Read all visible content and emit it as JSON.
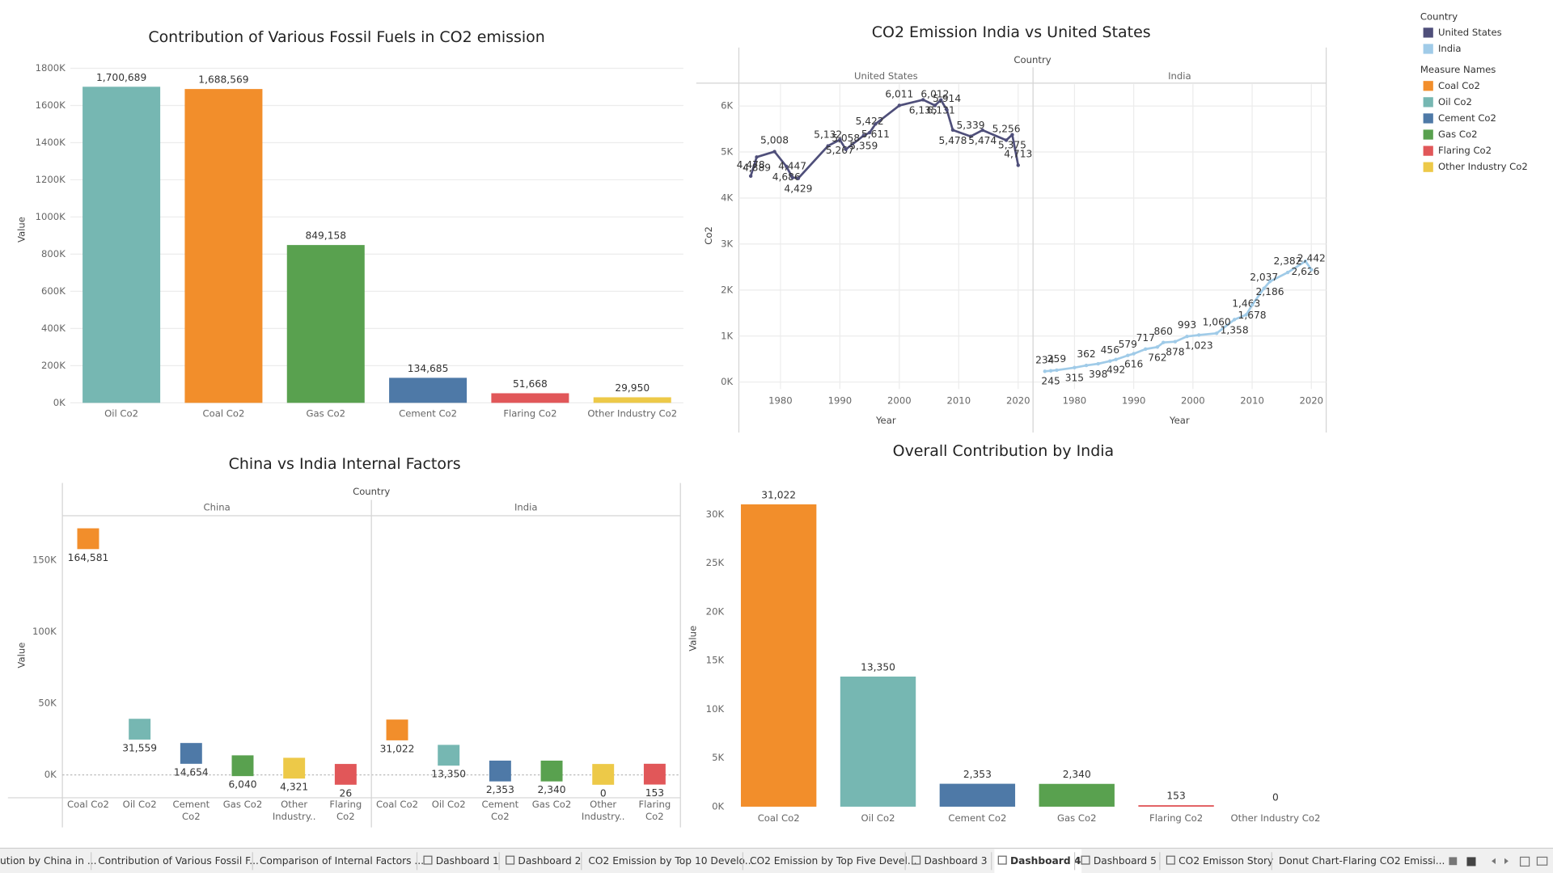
{
  "chart_data": [
    {
      "type": "bar",
      "title": "Contribution of Various Fossil Fuels in CO2 emission",
      "y_label": "Value",
      "categories": [
        "Oil Co2",
        "Coal Co2",
        "Gas Co2",
        "Cement Co2",
        "Flaring Co2",
        "Other Industry Co2"
      ],
      "values": [
        1700689,
        1688569,
        849158,
        134685,
        51668,
        29950
      ],
      "value_labels": [
        "1,700,689",
        "1,688,569",
        "849,158",
        "134,685",
        "51,668",
        "29,950"
      ],
      "colors": [
        "#76b7b2",
        "#f28e2b",
        "#59a14f",
        "#4e79a7",
        "#e15759",
        "#edc948"
      ],
      "ylim": [
        0,
        1800000
      ],
      "yticks": [
        {
          "value": 0,
          "label": "0K"
        },
        {
          "value": 200000,
          "label": "200K"
        },
        {
          "value": 400000,
          "label": "400K"
        },
        {
          "value": 600000,
          "label": "600K"
        },
        {
          "value": 800000,
          "label": "800K"
        },
        {
          "value": 1000000,
          "label": "1000K"
        },
        {
          "value": 1200000,
          "label": "1200K"
        },
        {
          "value": 1400000,
          "label": "1400K"
        },
        {
          "value": 1600000,
          "label": "1600K"
        },
        {
          "value": 1800000,
          "label": "1800K"
        }
      ],
      "grid": true
    },
    {
      "type": "line",
      "title": "CO2 Emission India vs United States",
      "header": "Country",
      "x_label": "Year",
      "y_label": "Co2",
      "series": [
        {
          "name": "United States",
          "color": "#4f4f7a",
          "x": [
            1975,
            1976,
            1979,
            1981,
            1982,
            1983,
            1988,
            1990,
            1991,
            1994,
            1995,
            1996,
            2000,
            2004,
            2006,
            2007,
            2008,
            2009,
            2012,
            2014,
            2018,
            2019,
            2020
          ],
          "values": [
            4478,
            4889,
            5008,
            4686,
            4447,
            4429,
            5132,
            5267,
            5058,
            5359,
            5422,
            5611,
            6011,
            6135,
            6012,
            6131,
            5914,
            5478,
            5339,
            5474,
            5256,
            5375,
            4713
          ],
          "value_labels": [
            "4,478",
            "4,889",
            "5,008",
            "4,686",
            "4,447",
            "4,429",
            "5,132",
            "5,267",
            "5,058",
            "5,359",
            "5,422",
            "5,611",
            "6,011",
            "6,135",
            "6,012",
            "6,131",
            "5,914",
            "5,478",
            "5,339",
            "5,474",
            "5,256",
            "5,375",
            "4,713"
          ]
        },
        {
          "name": "India",
          "color": "#a0cbe8",
          "x": [
            1975,
            1976,
            1977,
            1980,
            1982,
            1984,
            1986,
            1987,
            1989,
            1990,
            1992,
            1994,
            1995,
            1997,
            1999,
            2001,
            2004,
            2007,
            2009,
            2010,
            2012,
            2013,
            2016,
            2019,
            2020
          ],
          "values": [
            234,
            245,
            259,
            315,
            362,
            398,
            456,
            492,
            579,
            616,
            717,
            762,
            860,
            878,
            993,
            1023,
            1060,
            1358,
            1463,
            1678,
            2037,
            2186,
            2382,
            2626,
            2442
          ],
          "value_labels": [
            "234",
            "245",
            "259",
            "315",
            "362",
            "398",
            "456",
            "492",
            "579",
            "616",
            "717",
            "762",
            "860",
            "878",
            "993",
            "1,023",
            "1,060",
            "1,358",
            "1,463",
            "1,678",
            "2,037",
            "2,186",
            "2,382",
            "2,626",
            "2,442"
          ]
        }
      ],
      "xlim": [
        1973,
        2022.5
      ],
      "xticks": [
        1980,
        1990,
        2000,
        2010,
        2020
      ],
      "ylim": [
        -150,
        6475
      ],
      "yticks": [
        {
          "value": 0,
          "label": "0K"
        },
        {
          "value": 1000,
          "label": "1K"
        },
        {
          "value": 2000,
          "label": "2K"
        },
        {
          "value": 3000,
          "label": "3K"
        },
        {
          "value": 4000,
          "label": "4K"
        },
        {
          "value": 5000,
          "label": "5K"
        },
        {
          "value": 6000,
          "label": "6K"
        }
      ],
      "grid": true
    },
    {
      "type": "gantt",
      "title": "China vs India Internal Factors",
      "header": "Country",
      "y_label": "Value",
      "categories": [
        "Coal Co2",
        "Oil Co2",
        "Cement Co2",
        "Gas Co2",
        "Other Industry..",
        "Flaring Co2"
      ],
      "colors": [
        "#f28e2b",
        "#76b7b2",
        "#4e79a7",
        "#59a14f",
        "#edc948",
        "#e15759"
      ],
      "series": [
        {
          "name": "China",
          "values": [
            164581,
            31559,
            14654,
            6040,
            4321,
            26
          ],
          "value_labels": [
            "164,581",
            "31,559",
            "14,654",
            "6,040",
            "4,321",
            "26"
          ]
        },
        {
          "name": "India",
          "values": [
            31022,
            13350,
            2353,
            2340,
            0,
            153
          ],
          "value_labels": [
            "31,022",
            "13,350",
            "2,353",
            "2,340",
            "0",
            "153"
          ]
        }
      ],
      "ylim": [
        -16000,
        181000
      ],
      "yticks": [
        {
          "value": 0,
          "label": "0K"
        },
        {
          "value": 50000,
          "label": "50K"
        },
        {
          "value": 100000,
          "label": "100K"
        },
        {
          "value": 150000,
          "label": "150K"
        }
      ],
      "grid": false
    },
    {
      "type": "bar",
      "title": "Overall Contribution by India",
      "y_label": "Value",
      "categories": [
        "Coal Co2",
        "Oil Co2",
        "Cement Co2",
        "Gas Co2",
        "Flaring Co2",
        "Other Industry Co2"
      ],
      "values": [
        31022,
        13350,
        2353,
        2340,
        153,
        0
      ],
      "value_labels": [
        "31,022",
        "13,350",
        "2,353",
        "2,340",
        "153",
        "0"
      ],
      "colors": [
        "#f28e2b",
        "#76b7b2",
        "#4e79a7",
        "#59a14f",
        "#e15759",
        "#edc948"
      ],
      "ylim": [
        0,
        32500
      ],
      "yticks": [
        {
          "value": 0,
          "label": "0K"
        },
        {
          "value": 5000,
          "label": "5K"
        },
        {
          "value": 10000,
          "label": "10K"
        },
        {
          "value": 15000,
          "label": "15K"
        },
        {
          "value": 20000,
          "label": "20K"
        },
        {
          "value": 25000,
          "label": "25K"
        },
        {
          "value": 30000,
          "label": "30K"
        }
      ],
      "grid": false
    }
  ],
  "legend": {
    "groups": [
      {
        "title": "Country",
        "items": [
          {
            "name": "United States",
            "color": "#4f4f7a"
          },
          {
            "name": "India",
            "color": "#a0cbe8"
          }
        ]
      },
      {
        "title": "Measure Names",
        "items": [
          {
            "name": "Coal Co2",
            "color": "#f28e2b"
          },
          {
            "name": "Oil Co2",
            "color": "#76b7b2"
          },
          {
            "name": "Cement Co2",
            "color": "#4e79a7"
          },
          {
            "name": "Gas Co2",
            "color": "#59a14f"
          },
          {
            "name": "Flaring Co2",
            "color": "#e15759"
          },
          {
            "name": "Other Industry Co2",
            "color": "#edc948"
          }
        ]
      }
    ]
  },
  "tabs": {
    "items": [
      "ution by China in ...",
      "Contribution of Various Fossil F...",
      "Comparison of Internal Factors ...",
      "Dashboard 1",
      "Dashboard 2",
      "CO2 Emission by Top 10 Develo...",
      "CO2 Emission by Top Five Devel...",
      "Dashboard 3",
      "Dashboard 4",
      "Dashboard 5",
      "CO2 Emisson Story",
      "Donut Chart-Flaring CO2 Emissi..."
    ],
    "active": "Dashboard 4"
  }
}
